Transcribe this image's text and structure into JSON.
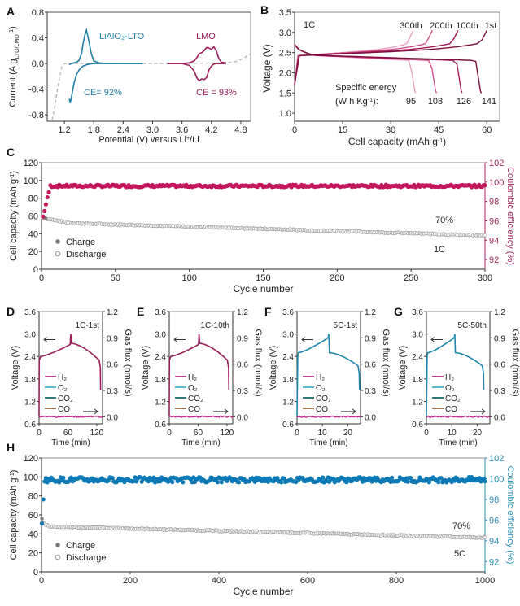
{
  "colors": {
    "lto": "#1f7fa8",
    "lmo": "#9c1e5a",
    "dash": "#b5b5b5",
    "ce_pink": "#c2185b",
    "ce_blue": "#0a79b5",
    "discharge": "#9a9a9a",
    "charge": "#7a7a7a",
    "axis_pink": "#a02860",
    "axis_blue": "#2a8fb8",
    "h2": "#c0278a",
    "o2": "#4cb3c9",
    "co2": "#1a6e6a",
    "co": "#9a6a3a",
    "v1c": "#9c1e5a",
    "v5c": "#1f87ad",
    "cycles": [
      "#7a0f3d",
      "#a81a55",
      "#d2508a",
      "#eaa0c2"
    ]
  },
  "chart_data": [
    {
      "id": "A",
      "panel_label": "A",
      "type": "line",
      "title": "",
      "xlabel": "Potential (V) versus Li+/Li",
      "xlabel_main": "Potential (V) versus Li",
      "xlabel_sup": "+",
      "xlabel_tail": "/Li",
      "ylabel": "Current (A g LTO/LMO -1)",
      "ylabel_main": "Current (A g",
      "ylabel_sub": "LTO/LMO",
      "ylabel_sup": "-1",
      "ylabel_tail": ")",
      "xlim": [
        0.85,
        5.0
      ],
      "ylim": [
        -0.9,
        0.8
      ],
      "xticks": [
        1.2,
        1.8,
        2.4,
        3.0,
        3.6,
        4.2,
        4.8
      ],
      "xtick_labels": [
        "1.2",
        "1.8",
        "2.4",
        "3.0",
        "3.6",
        "4.2",
        "4.8"
      ],
      "yticks": [
        0.8,
        0.4,
        0.0,
        -0.4,
        -0.8
      ],
      "ytick_labels": [
        "0.8",
        "0.4",
        "0.0",
        "-0.4",
        "-0.8"
      ],
      "annotations": [
        {
          "text": "LiAlO₂-LTO",
          "series": "lto"
        },
        {
          "text": "CE= 92%",
          "series": "lto"
        },
        {
          "text": "LMO",
          "series": "lmo"
        },
        {
          "text": "CE = 93%",
          "series": "lmo"
        }
      ],
      "series": [
        {
          "name": "LiAlO2-LTO",
          "x": [
            1.3,
            1.32,
            1.35,
            1.4,
            1.45,
            1.5,
            1.55,
            1.58,
            1.62,
            1.65,
            1.7,
            1.75,
            1.8,
            1.9,
            2.0,
            2.4,
            2.8
          ],
          "y_ox": [
            -0.02,
            -0.01,
            0.0,
            0.01,
            0.02,
            0.05,
            0.15,
            0.3,
            0.45,
            0.52,
            0.35,
            0.15,
            0.04,
            0.01,
            0.005,
            0.0,
            0.0
          ],
          "y_red": [
            -0.55,
            -0.62,
            -0.5,
            -0.3,
            -0.17,
            -0.1,
            -0.06,
            -0.04,
            -0.03,
            -0.02,
            -0.01,
            -0.005,
            0.0,
            0.0,
            0.0,
            0.0,
            0.0
          ]
        },
        {
          "name": "LMO",
          "x": [
            3.3,
            3.6,
            3.75,
            3.85,
            3.9,
            3.95,
            4.0,
            4.05,
            4.1,
            4.15,
            4.2,
            4.25,
            4.3,
            4.35,
            4.4,
            4.5
          ],
          "y_ox": [
            0.0,
            0.0,
            0.01,
            0.04,
            0.09,
            0.15,
            0.17,
            0.2,
            0.25,
            0.24,
            0.22,
            0.26,
            0.2,
            0.08,
            0.02,
            0.01
          ],
          "y_red": [
            0.0,
            0.0,
            -0.03,
            -0.12,
            -0.22,
            -0.27,
            -0.24,
            -0.25,
            -0.22,
            -0.1,
            -0.04,
            -0.01,
            0.0,
            0.0,
            0.0,
            0.0
          ]
        },
        {
          "name": "electrolyte window (dashed)",
          "x": [
            0.95,
            1.0,
            1.05,
            1.1,
            1.15,
            1.2,
            1.3,
            1.5,
            2.8,
            3.3,
            4.5,
            4.7,
            4.85,
            5.0
          ],
          "y": [
            -0.88,
            -0.7,
            -0.45,
            -0.22,
            -0.05,
            0.0,
            0.0,
            0.0,
            0.0,
            0.0,
            0.01,
            0.03,
            0.08,
            0.15
          ]
        }
      ]
    },
    {
      "id": "B",
      "panel_label": "B",
      "type": "line",
      "title": "",
      "xlabel": "Cell capacity (mAh g-1)",
      "xlabel_main": "Cell capacity (mAh g",
      "xlabel_sup": "-1",
      "xlabel_tail": ")",
      "ylabel": "Voltage (V)",
      "xlim": [
        0,
        64
      ],
      "ylim": [
        0.8,
        3.5
      ],
      "xticks": [
        0,
        15,
        30,
        45,
        60
      ],
      "xtick_labels": [
        "0",
        "15",
        "30",
        "45",
        "60"
      ],
      "yticks": [
        1.0,
        1.5,
        2.0,
        2.5,
        3.0,
        3.5
      ],
      "ytick_labels": [
        "1.0",
        "1.5",
        "2.0",
        "2.5",
        "3.0",
        "3.5"
      ],
      "rate_label": "1C",
      "energy_label_line1": "Specific energy",
      "energy_label_line2_main": "(W h Kg",
      "energy_label_line2_sup": "-1",
      "energy_label_line2_tail": "):",
      "series": [
        {
          "name": "1st",
          "charge_end": 60,
          "discharge_end": 58,
          "specific_energy": "141"
        },
        {
          "name": "100th",
          "charge_end": 51,
          "discharge_end": 52,
          "specific_energy": "126"
        },
        {
          "name": "200th",
          "charge_end": 43,
          "discharge_end": 44,
          "specific_energy": "108"
        },
        {
          "name": "300th",
          "charge_end": 37,
          "discharge_end": 37.5,
          "specific_energy": "95"
        }
      ]
    },
    {
      "id": "C",
      "panel_label": "C",
      "type": "scatter",
      "title": "",
      "xlabel": "Cycle number",
      "ylabel": "Cell capacity (mAh g-1)",
      "ylabel_main": "Cell capacity (mAh g",
      "ylabel_sup": "-1",
      "ylabel_tail": ")",
      "y2label": "Coulombic efficiency (%)",
      "xlim": [
        0,
        300
      ],
      "ylim": [
        0,
        120
      ],
      "y2lim": [
        91,
        102
      ],
      "xticks": [
        0,
        50,
        100,
        150,
        200,
        250,
        300
      ],
      "xtick_labels": [
        "0",
        "50",
        "100",
        "150",
        "200",
        "250",
        "300"
      ],
      "yticks": [
        0,
        20,
        40,
        60,
        80,
        100,
        120
      ],
      "ytick_labels": [
        "0",
        "20",
        "40",
        "60",
        "80",
        "100",
        "120"
      ],
      "y2ticks": [
        92,
        94,
        96,
        98,
        100,
        102
      ],
      "y2tick_labels": [
        "92",
        "94",
        "96",
        "98",
        "100",
        "102"
      ],
      "legend": [
        "Charge",
        "Discharge"
      ],
      "legend_position": "lower-left",
      "annotation_retention": "70%",
      "annotation_rate": "1C",
      "series": [
        {
          "name": "Coulombic efficiency",
          "axis": "right",
          "start": 95.8,
          "plateau": 99.6,
          "noise": 0.12
        },
        {
          "name": "Charge",
          "axis": "left",
          "start": 60,
          "end": 38
        },
        {
          "name": "Discharge",
          "axis": "left",
          "start": 58,
          "end": 38
        }
      ]
    },
    {
      "id": "D",
      "panel_label": "D",
      "type": "line",
      "subtitle": "1C-1st",
      "xlabel": "Time (min)",
      "ylabel": "Voltage (V)",
      "y2label": "Gas flux (nmol/s)",
      "xlim": [
        0,
        132
      ],
      "ylim": [
        0.6,
        3.6
      ],
      "y2lim": [
        -0.08,
        1.2
      ],
      "xticks": [
        0,
        60,
        120
      ],
      "xtick_labels": [
        "0",
        "60",
        "120"
      ],
      "yticks": [
        0.6,
        1.2,
        1.8,
        2.4,
        3.0,
        3.6
      ],
      "ytick_labels": [
        "0.6",
        "1.2",
        "1.8",
        "2.4",
        "3.0",
        "3.6"
      ],
      "y2ticks": [
        0.0,
        0.3,
        0.6,
        0.9,
        1.2
      ],
      "y2tick_labels": [
        "0.0",
        "0.3",
        "0.6",
        "0.9",
        "1.2"
      ],
      "legend": [
        "H₂",
        "O₂",
        "CO₂",
        "CO"
      ],
      "voltage_profile": {
        "t_peak": 66,
        "t_end": 128,
        "v_start": 2.4,
        "v_peak_pre": 2.72,
        "v_peak": 3.0,
        "v_post": 2.75,
        "v_knee": 2.3,
        "v_end": 1.5,
        "color": "v1c"
      },
      "gas_flux_level": 0.0
    },
    {
      "id": "E",
      "panel_label": "E",
      "type": "line",
      "subtitle": "1C-10th",
      "xlabel": "Time (min)",
      "ylabel": "Voltage (V)",
      "y2label": "Gas flux (nmol/s)",
      "xlim": [
        0,
        132
      ],
      "ylim": [
        0.6,
        3.6
      ],
      "y2lim": [
        -0.08,
        1.2
      ],
      "xticks": [
        0,
        60,
        120
      ],
      "xtick_labels": [
        "0",
        "60",
        "120"
      ],
      "yticks": [
        0.6,
        1.2,
        1.8,
        2.4,
        3.0,
        3.6
      ],
      "ytick_labels": [
        "0.6",
        "1.2",
        "1.8",
        "2.4",
        "3.0",
        "3.6"
      ],
      "y2ticks": [
        0.0,
        0.3,
        0.6,
        0.9,
        1.2
      ],
      "y2tick_labels": [
        "0.0",
        "0.3",
        "0.6",
        "0.9",
        "1.2"
      ],
      "legend": [
        "H₂",
        "O₂",
        "CO₂",
        "CO"
      ],
      "voltage_profile": {
        "t_peak": 62,
        "t_end": 124,
        "v_start": 2.4,
        "v_peak_pre": 2.72,
        "v_peak": 3.0,
        "v_post": 2.75,
        "v_knee": 2.3,
        "v_end": 1.5,
        "color": "v1c"
      },
      "gas_flux_level": 0.0
    },
    {
      "id": "F",
      "panel_label": "F",
      "type": "line",
      "subtitle": "5C-1st",
      "xlabel": "Time (min)",
      "ylabel": "Voltage (V)",
      "y2label": "Gas flux (nmol/s)",
      "xlim": [
        0,
        25
      ],
      "ylim": [
        0.6,
        3.6
      ],
      "y2lim": [
        -0.08,
        1.2
      ],
      "xticks": [
        0,
        10,
        20
      ],
      "xtick_labels": [
        "0",
        "10",
        "20"
      ],
      "yticks": [
        0.6,
        1.2,
        1.8,
        2.4,
        3.0,
        3.6
      ],
      "ytick_labels": [
        "0.6",
        "1.2",
        "1.8",
        "2.4",
        "3.0",
        "3.6"
      ],
      "y2ticks": [
        0.0,
        0.3,
        0.6,
        0.9,
        1.2
      ],
      "y2tick_labels": [
        "0.0",
        "0.3",
        "0.6",
        "0.9",
        "1.2"
      ],
      "legend": [
        "H₂",
        "O₂",
        "CO₂",
        "CO"
      ],
      "voltage_profile": {
        "t_peak": 12.5,
        "t_end": 24.6,
        "v_start": 2.5,
        "v_peak_pre": 2.9,
        "v_peak": 3.0,
        "v_post": 2.5,
        "v_knee": 2.15,
        "v_end": 1.5,
        "color": "v5c"
      },
      "gas_flux_level": 0.0
    },
    {
      "id": "G",
      "panel_label": "G",
      "type": "line",
      "subtitle": "5C-50th",
      "xlabel": "Time (min)",
      "ylabel": "Voltage (V)",
      "y2label": "Gas flux (nmol/s)",
      "xlim": [
        0,
        25
      ],
      "ylim": [
        0.6,
        3.6
      ],
      "y2lim": [
        -0.08,
        1.2
      ],
      "xticks": [
        0,
        10,
        20
      ],
      "xtick_labels": [
        "0",
        "10",
        "20"
      ],
      "yticks": [
        0.6,
        1.2,
        1.8,
        2.4,
        3.0,
        3.6
      ],
      "ytick_labels": [
        "0.6",
        "1.2",
        "1.8",
        "2.4",
        "3.0",
        "3.6"
      ],
      "y2ticks": [
        0.0,
        0.3,
        0.6,
        0.9,
        1.2
      ],
      "y2tick_labels": [
        "0.0",
        "0.3",
        "0.6",
        "0.9",
        "1.2"
      ],
      "legend": [
        "H₂",
        "O₂",
        "CO₂",
        "CO"
      ],
      "voltage_profile": {
        "t_peak": 11.2,
        "t_end": 22.6,
        "v_start": 2.5,
        "v_peak_pre": 2.9,
        "v_peak": 3.0,
        "v_post": 2.5,
        "v_knee": 2.15,
        "v_end": 1.5,
        "color": "v5c"
      },
      "gas_flux_level": 0.0
    },
    {
      "id": "H",
      "panel_label": "H",
      "type": "scatter",
      "title": "",
      "xlabel": "Cycle number",
      "ylabel": "Cell capacity (mAh g-1)",
      "ylabel_main": "Cell capacity (mAh g",
      "ylabel_sup": "-1",
      "ylabel_tail": ")",
      "y2label": "Coulombic efficiency (%)",
      "xlim": [
        0,
        1000
      ],
      "ylim": [
        0,
        120
      ],
      "y2lim": [
        91,
        102
      ],
      "xticks": [
        0,
        200,
        400,
        600,
        800,
        1000
      ],
      "xtick_labels": [
        "0",
        "200",
        "400",
        "600",
        "800",
        "1000"
      ],
      "yticks": [
        0,
        20,
        40,
        60,
        80,
        100,
        120
      ],
      "ytick_labels": [
        "0",
        "20",
        "40",
        "60",
        "80",
        "100",
        "120"
      ],
      "y2ticks": [
        92,
        94,
        96,
        98,
        100,
        102
      ],
      "y2tick_labels": [
        "92",
        "94",
        "96",
        "98",
        "100",
        "102"
      ],
      "legend": [
        "Charge",
        "Discharge"
      ],
      "legend_position": "lower-left",
      "annotation_retention": "70%",
      "annotation_rate": "5C",
      "series": [
        {
          "name": "Coulombic efficiency",
          "axis": "right",
          "start": 94.8,
          "plateau": 99.9,
          "noise": 0.25
        },
        {
          "name": "Charge",
          "axis": "left",
          "start": 57,
          "end": 36
        },
        {
          "name": "Discharge",
          "axis": "left",
          "start": 52,
          "end": 36
        }
      ]
    }
  ]
}
